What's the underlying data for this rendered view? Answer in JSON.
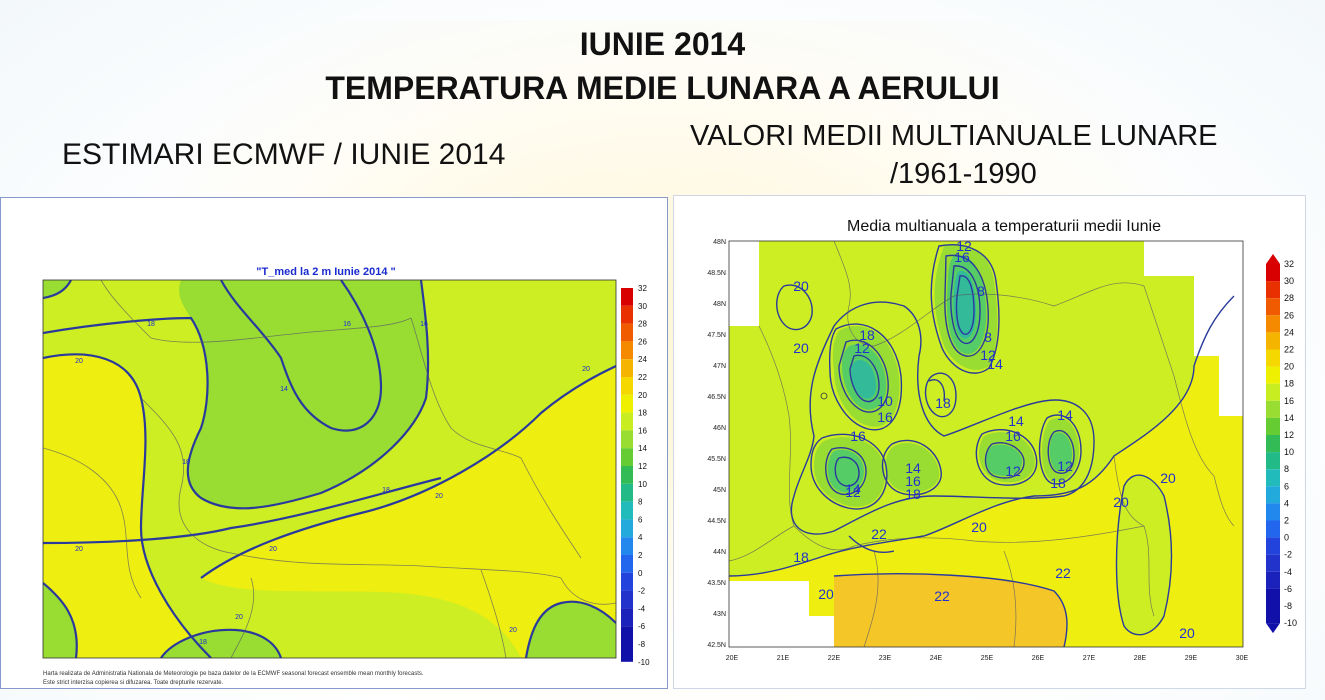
{
  "title": {
    "line1": "IUNIE 2014",
    "line2": "TEMPERATURA MEDIE LUNARA A AERULUI"
  },
  "left": {
    "subtitle": "ESTIMARI ECMWF / IUNIE 2014",
    "map_title": "\"T_med la 2 m Iunie 2014 \"",
    "colorbar_ticks": [
      "32",
      "30",
      "28",
      "26",
      "24",
      "22",
      "20",
      "18",
      "16",
      "14",
      "12",
      "10",
      "8",
      "6",
      "4",
      "2",
      "0",
      "-2",
      "-4",
      "-6",
      "-8",
      "-10"
    ],
    "contour_labels": [
      {
        "id": "c1",
        "text": "18"
      },
      {
        "id": "c2",
        "text": "20"
      },
      {
        "id": "c3",
        "text": "16"
      },
      {
        "id": "c4",
        "text": "14"
      },
      {
        "id": "c5",
        "text": "16"
      },
      {
        "id": "c6",
        "text": "18"
      },
      {
        "id": "c7",
        "text": "20"
      },
      {
        "id": "c8",
        "text": "18"
      },
      {
        "id": "c9",
        "text": "20"
      },
      {
        "id": "c10",
        "text": "20"
      },
      {
        "id": "c11",
        "text": "20"
      },
      {
        "id": "c12",
        "text": "20"
      },
      {
        "id": "c13",
        "text": "18"
      },
      {
        "id": "c14",
        "text": "20"
      }
    ],
    "footnote1": "Harta realizata de Administratia Nationala de Meteorologie pe baza datelor de la ECMWF seasonal forecast ensemble mean monthly forecasts.",
    "footnote2": "Este strict interzisa copierea si difuzarea. Toate drepturile rezervate."
  },
  "right": {
    "subtitle_line1": "VALORI MEDII MULTIANUALE LUNARE",
    "subtitle_line2": "/1961-1990",
    "map_title": "Media multianuala a temperaturii medii Iunie",
    "lat_ticks": [
      "48N",
      "48.5N",
      "48N",
      "47.5N",
      "47N",
      "46.5N",
      "46N",
      "45.5N",
      "45N",
      "44.5N",
      "44N",
      "43.5N",
      "43N",
      "42.5N"
    ],
    "lon_ticks": [
      "20E",
      "21E",
      "22E",
      "23E",
      "24E",
      "25E",
      "26E",
      "27E",
      "28E",
      "29E",
      "30E"
    ],
    "colorbar_ticks": [
      "32",
      "30",
      "28",
      "26",
      "24",
      "22",
      "20",
      "18",
      "16",
      "14",
      "12",
      "10",
      "8",
      "6",
      "4",
      "2",
      "0",
      "-2",
      "-4",
      "-6",
      "-8",
      "-10"
    ],
    "contour_labels": [
      {
        "id": "r1",
        "text": "12"
      },
      {
        "id": "r2",
        "text": "16"
      },
      {
        "id": "r3",
        "text": "20"
      },
      {
        "id": "r4",
        "text": "8"
      },
      {
        "id": "r5",
        "text": "20"
      },
      {
        "id": "r6",
        "text": "8"
      },
      {
        "id": "r7",
        "text": "18"
      },
      {
        "id": "r8",
        "text": "12"
      },
      {
        "id": "r9",
        "text": "12"
      },
      {
        "id": "r10",
        "text": "14"
      },
      {
        "id": "r11",
        "text": "10"
      },
      {
        "id": "r12",
        "text": "16"
      },
      {
        "id": "r13",
        "text": "18"
      },
      {
        "id": "r14",
        "text": "16"
      },
      {
        "id": "r15",
        "text": "14"
      },
      {
        "id": "r16",
        "text": "14"
      },
      {
        "id": "r17",
        "text": "16"
      },
      {
        "id": "r18",
        "text": "14"
      },
      {
        "id": "r19",
        "text": "12"
      },
      {
        "id": "r20",
        "text": "12"
      },
      {
        "id": "r21",
        "text": "14"
      },
      {
        "id": "r22",
        "text": "16"
      },
      {
        "id": "r23",
        "text": "18"
      },
      {
        "id": "r24",
        "text": "12"
      },
      {
        "id": "r25",
        "text": "18"
      },
      {
        "id": "r26",
        "text": "20"
      },
      {
        "id": "r27",
        "text": "20"
      },
      {
        "id": "r28",
        "text": "22"
      },
      {
        "id": "r29",
        "text": "18"
      },
      {
        "id": "r30",
        "text": "20"
      },
      {
        "id": "r31",
        "text": "22"
      },
      {
        "id": "r32",
        "text": "22"
      },
      {
        "id": "r33",
        "text": "20"
      },
      {
        "id": "r34",
        "text": "20"
      }
    ]
  },
  "colors": {
    "map_green": "#99dd33",
    "map_lightgreen": "#ccee22",
    "map_yellow": "#eeee11",
    "map_orange": "#f5c628",
    "contour_blue": "#2a3a9c",
    "label_blue": "#2233cc"
  }
}
